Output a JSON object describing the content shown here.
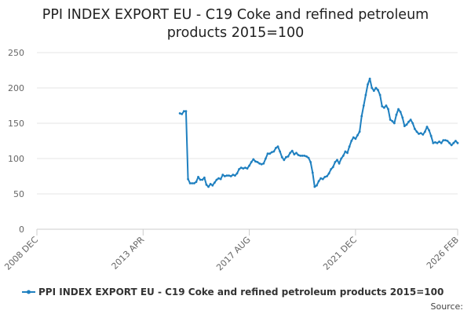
{
  "chart_data": {
    "type": "line",
    "title": "PPI INDEX EXPORT EU - C19 Coke and refined petroleum products 2015=100",
    "title_lines": [
      "PPI INDEX EXPORT EU - C19 Coke and refined petroleum",
      "products 2015=100"
    ],
    "xlabel": "",
    "ylabel": "",
    "ylim": [
      0,
      250
    ],
    "yticks": [
      "0",
      "50",
      "100",
      "150",
      "200",
      "250"
    ],
    "xlim": [
      "2008-12",
      "2026-02"
    ],
    "xticks": [
      {
        "label": "2008 DEC",
        "date": "2008-12"
      },
      {
        "label": "2013 APR",
        "date": "2013-04"
      },
      {
        "label": "2017 AUG",
        "date": "2017-08"
      },
      {
        "label": "2021 DEC",
        "date": "2021-12"
      },
      {
        "label": "2026 FEB",
        "date": "2026-02"
      }
    ],
    "grid": "horizontal",
    "legend_position": "bottom",
    "series": [
      {
        "name": "PPI INDEX EXPORT EU - C19 Coke and refined petroleum products 2015=100",
        "color": "#1f80c0",
        "points": [
          [
            "2014-10",
            164
          ],
          [
            "2014-11",
            163
          ],
          [
            "2014-12",
            167
          ],
          [
            "2015-01",
            167
          ],
          [
            "2015-02",
            71
          ],
          [
            "2015-03",
            65
          ],
          [
            "2015-04",
            65
          ],
          [
            "2015-05",
            65
          ],
          [
            "2015-06",
            67
          ],
          [
            "2015-07",
            74
          ],
          [
            "2015-08",
            70
          ],
          [
            "2015-09",
            70
          ],
          [
            "2015-10",
            73
          ],
          [
            "2015-11",
            63
          ],
          [
            "2015-12",
            60
          ],
          [
            "2016-01",
            64
          ],
          [
            "2016-02",
            62
          ],
          [
            "2016-03",
            66
          ],
          [
            "2016-04",
            70
          ],
          [
            "2016-05",
            72
          ],
          [
            "2016-06",
            71
          ],
          [
            "2016-07",
            77
          ],
          [
            "2016-08",
            75
          ],
          [
            "2016-09",
            76
          ],
          [
            "2016-10",
            76
          ],
          [
            "2016-11",
            75
          ],
          [
            "2016-12",
            77
          ],
          [
            "2017-01",
            76
          ],
          [
            "2017-02",
            79
          ],
          [
            "2017-03",
            85
          ],
          [
            "2017-04",
            87
          ],
          [
            "2017-05",
            86
          ],
          [
            "2017-06",
            87
          ],
          [
            "2017-07",
            86
          ],
          [
            "2017-08",
            90
          ],
          [
            "2017-09",
            95
          ],
          [
            "2017-10",
            99
          ],
          [
            "2017-11",
            96
          ],
          [
            "2017-12",
            95
          ],
          [
            "2018-01",
            93
          ],
          [
            "2018-02",
            92
          ],
          [
            "2018-03",
            93
          ],
          [
            "2018-04",
            100
          ],
          [
            "2018-05",
            107
          ],
          [
            "2018-06",
            107
          ],
          [
            "2018-07",
            109
          ],
          [
            "2018-08",
            110
          ],
          [
            "2018-09",
            115
          ],
          [
            "2018-10",
            117
          ],
          [
            "2018-11",
            110
          ],
          [
            "2018-12",
            102
          ],
          [
            "2019-01",
            98
          ],
          [
            "2019-02",
            102
          ],
          [
            "2019-03",
            103
          ],
          [
            "2019-04",
            108
          ],
          [
            "2019-05",
            111
          ],
          [
            "2019-06",
            106
          ],
          [
            "2019-07",
            108
          ],
          [
            "2019-08",
            105
          ],
          [
            "2019-09",
            104
          ],
          [
            "2019-10",
            104
          ],
          [
            "2019-11",
            104
          ],
          [
            "2019-12",
            103
          ],
          [
            "2020-01",
            101
          ],
          [
            "2020-02",
            95
          ],
          [
            "2020-03",
            80
          ],
          [
            "2020-04",
            60
          ],
          [
            "2020-05",
            62
          ],
          [
            "2020-06",
            68
          ],
          [
            "2020-07",
            72
          ],
          [
            "2020-08",
            71
          ],
          [
            "2020-09",
            74
          ],
          [
            "2020-10",
            75
          ],
          [
            "2020-11",
            79
          ],
          [
            "2020-12",
            85
          ],
          [
            "2021-01",
            88
          ],
          [
            "2021-02",
            95
          ],
          [
            "2021-03",
            98
          ],
          [
            "2021-04",
            93
          ],
          [
            "2021-05",
            100
          ],
          [
            "2021-06",
            104
          ],
          [
            "2021-07",
            110
          ],
          [
            "2021-08",
            108
          ],
          [
            "2021-09",
            117
          ],
          [
            "2021-10",
            125
          ],
          [
            "2021-11",
            130
          ],
          [
            "2021-12",
            128
          ],
          [
            "2022-01",
            133
          ],
          [
            "2022-02",
            138
          ],
          [
            "2022-03",
            160
          ],
          [
            "2022-04",
            175
          ],
          [
            "2022-05",
            190
          ],
          [
            "2022-06",
            205
          ],
          [
            "2022-07",
            213
          ],
          [
            "2022-08",
            200
          ],
          [
            "2022-09",
            196
          ],
          [
            "2022-10",
            200
          ],
          [
            "2022-11",
            197
          ],
          [
            "2022-12",
            190
          ],
          [
            "2023-01",
            174
          ],
          [
            "2023-02",
            172
          ],
          [
            "2023-03",
            175
          ],
          [
            "2023-04",
            170
          ],
          [
            "2023-05",
            155
          ],
          [
            "2023-06",
            153
          ],
          [
            "2023-07",
            150
          ],
          [
            "2023-08",
            162
          ],
          [
            "2023-09",
            170
          ],
          [
            "2023-10",
            166
          ],
          [
            "2023-11",
            158
          ],
          [
            "2023-12",
            146
          ],
          [
            "2024-01",
            148
          ],
          [
            "2024-02",
            152
          ],
          [
            "2024-03",
            155
          ],
          [
            "2024-04",
            150
          ],
          [
            "2024-05",
            142
          ],
          [
            "2024-06",
            138
          ],
          [
            "2024-07",
            135
          ],
          [
            "2024-08",
            136
          ],
          [
            "2024-09",
            134
          ],
          [
            "2024-10",
            138
          ],
          [
            "2024-11",
            145
          ],
          [
            "2024-12",
            140
          ],
          [
            "2025-01",
            132
          ],
          [
            "2025-02",
            122
          ],
          [
            "2025-03",
            123
          ],
          [
            "2025-04",
            122
          ],
          [
            "2025-05",
            124
          ],
          [
            "2025-06",
            122
          ],
          [
            "2025-07",
            126
          ],
          [
            "2025-08",
            126
          ],
          [
            "2025-09",
            125
          ],
          [
            "2025-10",
            122
          ],
          [
            "2025-11",
            119
          ],
          [
            "2025-12",
            122
          ],
          [
            "2026-01",
            125
          ],
          [
            "2026-02",
            122
          ]
        ]
      }
    ]
  },
  "legend": {
    "label": "PPI INDEX EXPORT EU - C19 Coke and refined petroleum products 2015=100"
  },
  "source": {
    "label": "Source:"
  }
}
